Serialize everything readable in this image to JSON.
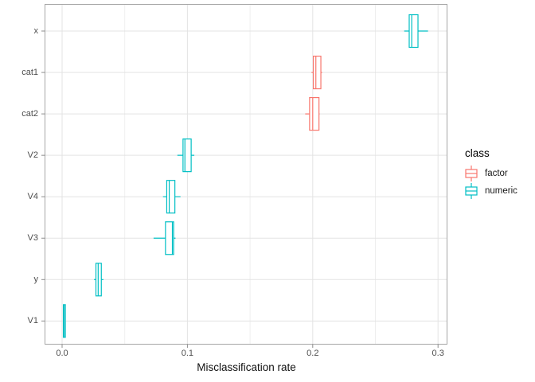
{
  "figure": {
    "background": "#ffffff"
  },
  "legend": {
    "title": "class",
    "position": "right",
    "items": [
      {
        "label": "factor",
        "color": "#F8766D"
      },
      {
        "label": "numeric",
        "color": "#00BFC4"
      }
    ]
  },
  "style": {
    "panel_border": "#a6a6a6",
    "grid_major": "#e3e3e3",
    "grid_minor": "#eeeeee",
    "tick_color": "#8c8c8c",
    "tick_label_color": "#4d4d4d",
    "box_fill": "#ffffff"
  },
  "chart_data": {
    "type": "boxplot",
    "orientation": "horizontal",
    "title": "",
    "xlabel": "Misclassification rate",
    "ylabel": "",
    "xlim": [
      -0.013,
      0.307
    ],
    "x_ticks": [
      0,
      0.1,
      0.2,
      0.3
    ],
    "x_tick_labels": [
      "0.0",
      "0.1",
      "0.2",
      "0.3"
    ],
    "x_minor_ticks": [
      0.05,
      0.15,
      0.25
    ],
    "grid": "on",
    "legend_position": "right",
    "categories": [
      "x",
      "cat1",
      "cat2",
      "V2",
      "V4",
      "V3",
      "y",
      "V1"
    ],
    "class_colors": {
      "factor": "#F8766D",
      "numeric": "#00BFC4"
    },
    "series": [
      {
        "category": "x",
        "class": "numeric",
        "whisker_low": 0.273,
        "q1": 0.277,
        "median": 0.279,
        "q3": 0.284,
        "whisker_high": 0.292
      },
      {
        "category": "cat1",
        "class": "factor",
        "whisker_low": 0.199,
        "q1": 0.2005,
        "median": 0.2025,
        "q3": 0.2065,
        "whisker_high": 0.2075
      },
      {
        "category": "cat2",
        "class": "factor",
        "whisker_low": 0.194,
        "q1": 0.1975,
        "median": 0.2,
        "q3": 0.205,
        "whisker_high": 0.2055
      },
      {
        "category": "V2",
        "class": "numeric",
        "whisker_low": 0.092,
        "q1": 0.0965,
        "median": 0.098,
        "q3": 0.103,
        "whisker_high": 0.1055
      },
      {
        "category": "V4",
        "class": "numeric",
        "whisker_low": 0.0805,
        "q1": 0.0835,
        "median": 0.0855,
        "q3": 0.09,
        "whisker_high": 0.0945
      },
      {
        "category": "V3",
        "class": "numeric",
        "whisker_low": 0.073,
        "q1": 0.0825,
        "median": 0.088,
        "q3": 0.089,
        "whisker_high": 0.0905
      },
      {
        "category": "y",
        "class": "numeric",
        "whisker_low": 0.0255,
        "q1": 0.027,
        "median": 0.0288,
        "q3": 0.0313,
        "whisker_high": 0.033
      },
      {
        "category": "V1",
        "class": "numeric",
        "whisker_low": 0.0008,
        "q1": 0.001,
        "median": 0.0016,
        "q3": 0.0026,
        "whisker_high": 0.0028
      }
    ]
  }
}
